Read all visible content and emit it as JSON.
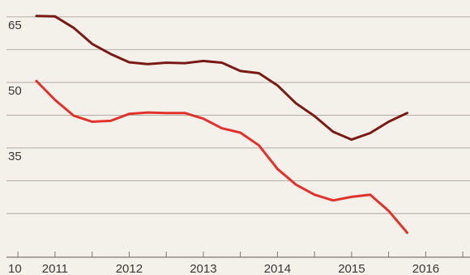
{
  "chart_data": {
    "type": "line",
    "ylim": [
      10,
      67
    ],
    "xlim": [
      2010.2,
      2016.45
    ],
    "y_ticks": [
      65,
      50,
      35,
      10
    ],
    "gridlines": [
      65,
      57.5,
      50,
      42.5,
      35,
      27.5,
      20
    ],
    "x_ticks": [
      2011,
      2012,
      2013,
      2014,
      2015,
      2016
    ],
    "x_minor_ticks": [
      2010.5,
      2011.5,
      2012.5,
      2013.5,
      2014.5,
      2015.5,
      2016.5
    ],
    "grid": true,
    "legend": "none",
    "series": [
      {
        "color": "#7a1a14",
        "x": [
          2010.75,
          2011.0,
          2011.25,
          2011.5,
          2011.75,
          2012.0,
          2012.25,
          2012.5,
          2012.75,
          2013.0,
          2013.25,
          2013.5,
          2013.75,
          2014.0,
          2014.25,
          2014.5,
          2014.75,
          2015.0,
          2015.25,
          2015.5,
          2015.75
        ],
        "y": [
          65.2,
          65.1,
          62.5,
          58.8,
          56.5,
          54.6,
          54.2,
          54.5,
          54.4,
          54.9,
          54.5,
          52.6,
          52.1,
          49.3,
          45.2,
          42.3,
          38.7,
          36.9,
          38.4,
          41.0,
          43.0
        ]
      },
      {
        "color": "#e0322b",
        "x": [
          2010.75,
          2011.0,
          2011.25,
          2011.5,
          2011.75,
          2012.0,
          2012.25,
          2012.5,
          2012.75,
          2013.0,
          2013.25,
          2013.5,
          2013.75,
          2014.0,
          2014.25,
          2014.5,
          2014.75,
          2015.0,
          2015.25,
          2015.5,
          2015.75
        ],
        "y": [
          50.3,
          46.0,
          42.4,
          41.0,
          41.2,
          42.8,
          43.1,
          43.0,
          43.0,
          41.7,
          39.5,
          38.5,
          35.6,
          30.2,
          26.6,
          24.3,
          23.0,
          23.8,
          24.3,
          20.6,
          15.6
        ]
      }
    ]
  }
}
